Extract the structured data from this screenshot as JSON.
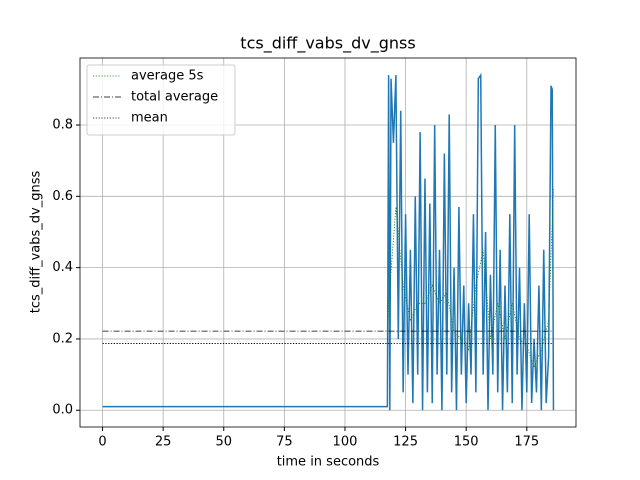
{
  "chart_data": {
    "type": "line",
    "title": "tcs_diff_vabs_dv_gnss",
    "xlabel": "time in seconds",
    "ylabel": "tcs_diff_vabs_dv_gnss",
    "xlim": [
      -9.3,
      195.3
    ],
    "ylim": [
      -0.047,
      0.988
    ],
    "xticks": [
      0,
      25,
      50,
      75,
      100,
      125,
      150,
      175
    ],
    "yticks": [
      {
        "value": 0,
        "label": "0.0"
      },
      0.2,
      0.4,
      0.6,
      0.8
    ],
    "grid": true,
    "legend": "upper left",
    "series": [
      {
        "color": "#1f77b4",
        "dash": "solid",
        "x": [
          0,
          117.5,
          118,
          118.5,
          119,
          120,
          121,
          122,
          123,
          124,
          125,
          126,
          127,
          128,
          129,
          130,
          131,
          132,
          133,
          134,
          135,
          136,
          137,
          138,
          139,
          140,
          141,
          142,
          143,
          144,
          145,
          146,
          147,
          148,
          149,
          150,
          151,
          152,
          153,
          154,
          155,
          156,
          157,
          158,
          159,
          160,
          161,
          162,
          163,
          164,
          165,
          166,
          167,
          168,
          169,
          170,
          171,
          172,
          173,
          174,
          175,
          176,
          177,
          178,
          179,
          180,
          181,
          182,
          183,
          184,
          185,
          185.5,
          186
        ],
        "values": [
          0.01,
          0.01,
          0.94,
          0.0,
          0.93,
          0.75,
          0.94,
          0.2,
          0.84,
          0.05,
          0.55,
          0.1,
          0.45,
          0.02,
          0.6,
          0.1,
          0.78,
          0.0,
          0.65,
          0.05,
          0.58,
          0.02,
          0.8,
          0.1,
          0.45,
          0.0,
          0.72,
          0.1,
          0.83,
          0.05,
          0.4,
          0.0,
          0.57,
          0.1,
          0.35,
          0.02,
          0.3,
          0.1,
          0.55,
          0.05,
          0.93,
          0.94,
          0.1,
          0.5,
          0.0,
          0.38,
          0.1,
          0.8,
          0.05,
          0.45,
          0.0,
          0.35,
          0.05,
          0.55,
          0.02,
          0.8,
          0.1,
          0.4,
          0.0,
          0.3,
          0.05,
          0.55,
          0.02,
          0.2,
          0.05,
          0.35,
          0.0,
          0.45,
          0.02,
          0.15,
          0.91,
          0.9,
          0.0
        ]
      },
      {
        "name": "average 5s",
        "color": "#008000",
        "dash": "dotted",
        "x": [
          0,
          117.5,
          118,
          121,
          124,
          127,
          130,
          133,
          136,
          139,
          142,
          145,
          148,
          151,
          154,
          157,
          160,
          163,
          166,
          169,
          172,
          175,
          178,
          181,
          184,
          186
        ],
        "values": [
          0.187,
          0.187,
          0.3,
          0.57,
          0.35,
          0.25,
          0.3,
          0.3,
          0.35,
          0.3,
          0.33,
          0.22,
          0.2,
          0.17,
          0.35,
          0.45,
          0.2,
          0.3,
          0.2,
          0.3,
          0.2,
          0.18,
          0.12,
          0.17,
          0.25,
          0.62
        ]
      },
      {
        "name": "total average",
        "color": "#000000",
        "dash": "dashdot",
        "x": [
          0,
          186
        ],
        "values": [
          0.222,
          0.222
        ]
      },
      {
        "name": "mean",
        "color": "#000000",
        "dash": "dotted",
        "x": [
          0,
          186
        ],
        "values": [
          0.187,
          0.187
        ]
      }
    ]
  }
}
